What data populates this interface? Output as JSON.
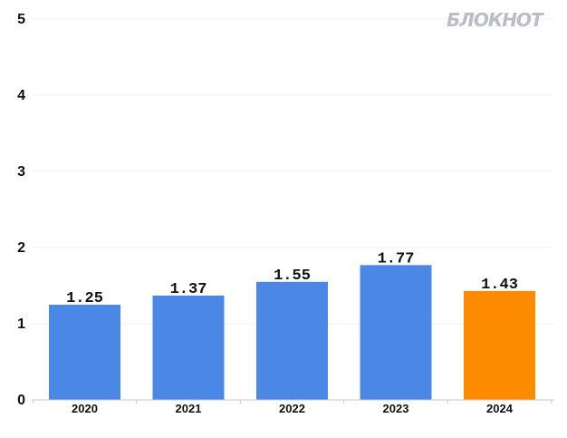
{
  "logo": {
    "text": "БЛОКНОТ"
  },
  "colors": {
    "default_bar": "#4b88e6",
    "highlight_bar": "#ff8c00",
    "grid": "#f0f0f0",
    "axis": "#c8c8c8"
  },
  "chart_data": {
    "type": "bar",
    "categories": [
      "2020",
      "2021",
      "2022",
      "2023",
      "2024"
    ],
    "values": [
      1.25,
      1.37,
      1.55,
      1.77,
      1.43
    ],
    "value_labels": [
      "1.25",
      "1.37",
      "1.55",
      "1.77",
      "1.43"
    ],
    "highlight_index": 4,
    "title": "",
    "xlabel": "",
    "ylabel": "",
    "ylim": [
      0,
      5
    ],
    "yticks": [
      0,
      1,
      2,
      3,
      4,
      5
    ],
    "ytick_labels": [
      "0",
      "1",
      "2",
      "3",
      "4",
      "5"
    ],
    "grid": true,
    "legend": "none"
  }
}
